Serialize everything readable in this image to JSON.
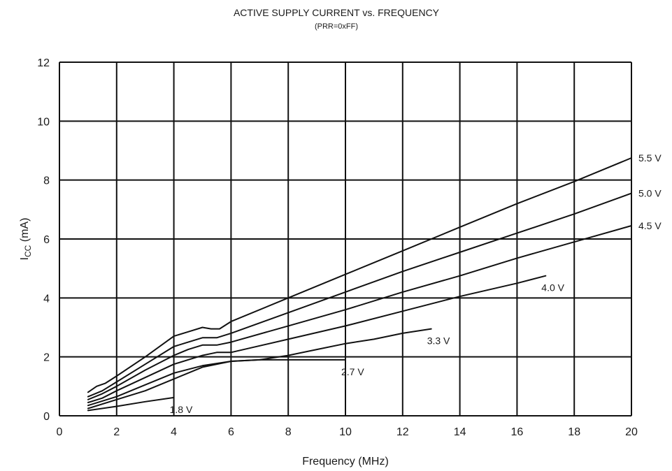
{
  "chart_data": {
    "type": "line",
    "title": "ACTIVE SUPPLY CURRENT vs. FREQUENCY",
    "subtitle": "(PRR=0xFF)",
    "xlabel": "Frequency (MHz)",
    "ylabel_main": "I",
    "ylabel_sub": "CC",
    "ylabel_rest": " (mA)",
    "xlim": [
      0,
      20
    ],
    "ylim": [
      0,
      12
    ],
    "x_ticks": [
      0,
      2,
      4,
      6,
      8,
      10,
      12,
      14,
      16,
      18,
      20
    ],
    "y_ticks": [
      0,
      2,
      4,
      6,
      8,
      10,
      12
    ],
    "grid": true,
    "series": [
      {
        "name": "5.5 V",
        "x": [
          1,
          1.3,
          1.6,
          2,
          3,
          4,
          4.5,
          5,
          5.3,
          5.6,
          6,
          8,
          10,
          12,
          14,
          16,
          18,
          20
        ],
        "y": [
          0.8,
          1.0,
          1.1,
          1.35,
          2.0,
          2.7,
          2.85,
          3.0,
          2.95,
          2.95,
          3.2,
          4.0,
          4.8,
          5.6,
          6.4,
          7.2,
          7.95,
          8.75
        ]
      },
      {
        "name": "5.0 V",
        "x": [
          1,
          1.5,
          2,
          3,
          4,
          4.5,
          5,
          5.5,
          6,
          8,
          10,
          12,
          14,
          16,
          18,
          20
        ],
        "y": [
          0.65,
          0.85,
          1.15,
          1.75,
          2.35,
          2.5,
          2.65,
          2.65,
          2.8,
          3.5,
          4.2,
          4.9,
          5.55,
          6.2,
          6.85,
          7.55
        ]
      },
      {
        "name": "4.5 V",
        "x": [
          1,
          1.5,
          2,
          3,
          4,
          4.5,
          5,
          5.5,
          6,
          8,
          10,
          12,
          14,
          16,
          18,
          20
        ],
        "y": [
          0.55,
          0.75,
          1.0,
          1.55,
          2.05,
          2.25,
          2.4,
          2.4,
          2.5,
          3.05,
          3.6,
          4.2,
          4.75,
          5.35,
          5.9,
          6.45
        ]
      },
      {
        "name": "4.0 V",
        "x": [
          1,
          1.5,
          2,
          3,
          4,
          5,
          5.5,
          6,
          8,
          10,
          12,
          14,
          16,
          17
        ],
        "y": [
          0.45,
          0.6,
          0.85,
          1.3,
          1.75,
          2.05,
          2.15,
          2.15,
          2.6,
          3.05,
          3.55,
          4.05,
          4.5,
          4.75
        ]
      },
      {
        "name": "3.3 V",
        "x": [
          1,
          2,
          3,
          4,
          5,
          6,
          7,
          8,
          9,
          10,
          11,
          12,
          13
        ],
        "y": [
          0.35,
          0.65,
          1.05,
          1.45,
          1.7,
          1.85,
          1.9,
          2.05,
          2.25,
          2.45,
          2.6,
          2.8,
          2.95
        ]
      },
      {
        "name": "2.7 V",
        "x": [
          1,
          2,
          3,
          4,
          5,
          6,
          7,
          8,
          9,
          10
        ],
        "y": [
          0.25,
          0.55,
          0.85,
          1.25,
          1.65,
          1.85,
          1.9,
          1.9,
          1.9,
          1.9
        ]
      },
      {
        "name": "1.8 V",
        "x": [
          1,
          2,
          3,
          4
        ],
        "y": [
          0.18,
          0.32,
          0.48,
          0.62
        ]
      }
    ],
    "series_label_offsets_note": ""
  }
}
